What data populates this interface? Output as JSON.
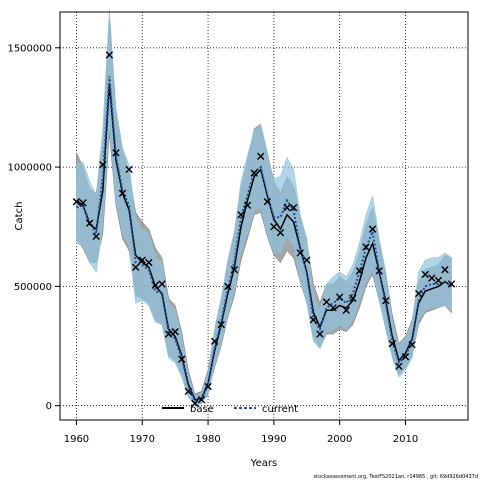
{
  "chart_data": {
    "type": "line",
    "xlabel": "Years",
    "ylabel": "Catch",
    "xlim": [
      1957.5,
      2019.5
    ],
    "ylim": [
      -60000,
      1650000
    ],
    "xticks": [
      1960,
      1970,
      1980,
      1990,
      2000,
      2010
    ],
    "xtick_labels": [
      "1960",
      "1970",
      "1980",
      "1990",
      "2000",
      "2010"
    ],
    "yticks": [
      0,
      500000,
      1000000,
      1500000
    ],
    "ytick_labels": [
      "0",
      "500000",
      "1000000",
      "1500000"
    ],
    "grid": true,
    "legend_position": "bottom-center",
    "footnote": "stockassessment.org, TestFS2021an, r14985 , git: 69d926d0437d",
    "observed_marker": "x",
    "observed": {
      "x": [
        1960,
        1961,
        1962,
        1963,
        1964,
        1965,
        1966,
        1967,
        1968,
        1969,
        1970,
        1971,
        1972,
        1973,
        1974,
        1975,
        1976,
        1977,
        1978,
        1979,
        1980,
        1981,
        1982,
        1983,
        1984,
        1985,
        1986,
        1987,
        1988,
        1989,
        1990,
        1991,
        1992,
        1993,
        1994,
        1995,
        1996,
        1997,
        1998,
        1999,
        2000,
        2001,
        2002,
        2003,
        2004,
        2005,
        2006,
        2007,
        2008,
        2009,
        2010,
        2011,
        2012,
        2013,
        2014,
        2015,
        2016,
        2017
      ],
      "y": [
        855000,
        850000,
        765000,
        710000,
        1010000,
        1470000,
        1060000,
        890000,
        990000,
        580000,
        610000,
        600000,
        505000,
        510000,
        300000,
        310000,
        195000,
        60000,
        10000,
        25000,
        80000,
        270000,
        340000,
        500000,
        570000,
        800000,
        840000,
        975000,
        1045000,
        855000,
        750000,
        725000,
        830000,
        830000,
        640000,
        610000,
        360000,
        300000,
        435000,
        410000,
        455000,
        400000,
        450000,
        565000,
        665000,
        740000,
        565000,
        440000,
        260000,
        165000,
        205000,
        255000,
        470000,
        550000,
        535000,
        525000,
        570000,
        510000
      ]
    },
    "series": [
      {
        "name": "base",
        "color": "#000000",
        "band_color": "#888888",
        "y": [
          860000,
          840000,
          760000,
          740000,
          900000,
          1350000,
          1030000,
          890000,
          820000,
          630000,
          600000,
          580000,
          500000,
          470000,
          320000,
          290000,
          210000,
          90000,
          25000,
          30000,
          95000,
          230000,
          340000,
          470000,
          580000,
          750000,
          860000,
          960000,
          990000,
          880000,
          780000,
          740000,
          800000,
          770000,
          660000,
          560000,
          390000,
          330000,
          400000,
          400000,
          420000,
          410000,
          440000,
          520000,
          620000,
          680000,
          560000,
          440000,
          290000,
          190000,
          220000,
          280000,
          430000,
          480000,
          490000,
          500000,
          520000,
          500000
        ],
        "lo": [
          700000,
          660000,
          600000,
          600000,
          720000,
          1140000,
          840000,
          700000,
          650000,
          460000,
          450000,
          430000,
          360000,
          340000,
          210000,
          190000,
          130000,
          45000,
          5000,
          10000,
          50000,
          160000,
          250000,
          370000,
          460000,
          610000,
          700000,
          800000,
          810000,
          710000,
          630000,
          600000,
          650000,
          620000,
          520000,
          430000,
          290000,
          240000,
          300000,
          300000,
          320000,
          310000,
          340000,
          410000,
          500000,
          550000,
          440000,
          330000,
          210000,
          130000,
          160000,
          210000,
          340000,
          390000,
          400000,
          410000,
          420000,
          390000
        ],
        "hi": [
          1060000,
          1000000,
          910000,
          890000,
          1100000,
          1620000,
          1230000,
          1070000,
          980000,
          810000,
          770000,
          740000,
          660000,
          620000,
          450000,
          420000,
          310000,
          150000,
          50000,
          60000,
          150000,
          320000,
          450000,
          600000,
          720000,
          910000,
          1030000,
          1160000,
          1180000,
          1060000,
          940000,
          890000,
          960000,
          920000,
          800000,
          690000,
          510000,
          430000,
          510000,
          510000,
          540000,
          520000,
          560000,
          640000,
          760000,
          830000,
          690000,
          560000,
          380000,
          260000,
          290000,
          360000,
          520000,
          570000,
          580000,
          590000,
          630000,
          620000
        ]
      },
      {
        "name": "current",
        "color": "#1f4e9e",
        "band_color": "#8fc3e0",
        "y": [
          830000,
          840000,
          770000,
          720000,
          960000,
          1380000,
          1050000,
          900000,
          840000,
          600000,
          590000,
          570000,
          480000,
          470000,
          310000,
          280000,
          200000,
          80000,
          20000,
          25000,
          90000,
          240000,
          350000,
          490000,
          600000,
          790000,
          880000,
          980000,
          1000000,
          880000,
          790000,
          790000,
          860000,
          820000,
          660000,
          560000,
          360000,
          320000,
          410000,
          430000,
          450000,
          430000,
          470000,
          560000,
          660000,
          730000,
          560000,
          430000,
          270000,
          180000,
          210000,
          270000,
          440000,
          500000,
          510000,
          510000,
          520000,
          500000
        ],
        "lo": [
          680000,
          670000,
          600000,
          560000,
          760000,
          1180000,
          860000,
          720000,
          670000,
          430000,
          440000,
          420000,
          350000,
          340000,
          200000,
          180000,
          120000,
          35000,
          3000,
          8000,
          45000,
          170000,
          260000,
          380000,
          480000,
          650000,
          720000,
          820000,
          830000,
          720000,
          640000,
          640000,
          710000,
          670000,
          530000,
          430000,
          270000,
          240000,
          310000,
          320000,
          340000,
          320000,
          360000,
          440000,
          520000,
          570000,
          440000,
          320000,
          200000,
          120000,
          150000,
          200000,
          360000,
          400000,
          410000,
          410000,
          420000,
          400000
        ],
        "hi": [
          1010000,
          1020000,
          940000,
          880000,
          1160000,
          1660000,
          1250000,
          1080000,
          1010000,
          780000,
          740000,
          720000,
          620000,
          600000,
          430000,
          400000,
          290000,
          130000,
          40000,
          50000,
          140000,
          320000,
          450000,
          610000,
          730000,
          940000,
          1050000,
          1150000,
          1180000,
          1050000,
          950000,
          960000,
          1040000,
          990000,
          800000,
          700000,
          460000,
          400000,
          510000,
          540000,
          560000,
          540000,
          590000,
          680000,
          800000,
          880000,
          700000,
          560000,
          350000,
          250000,
          280000,
          350000,
          560000,
          610000,
          620000,
          620000,
          640000,
          620000
        ]
      }
    ]
  }
}
